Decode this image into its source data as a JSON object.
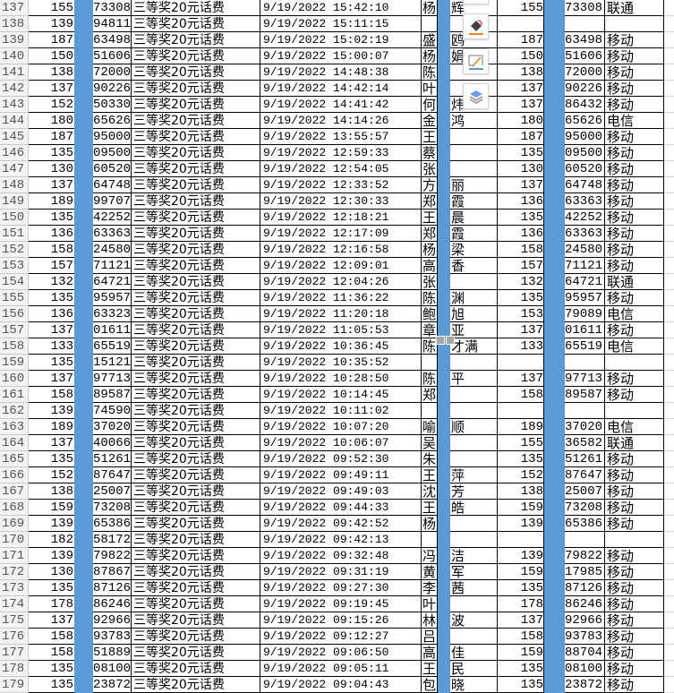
{
  "colors": {
    "highlight_column": "#5b9bd5",
    "row_header_bg": "#f3f3f3"
  },
  "toolbar": {
    "icons": [
      "paint-bucket-icon",
      "border-pen-icon",
      "layers-icon"
    ]
  },
  "rows": [
    [
      "137",
      "155",
      "73308",
      "三等奖20元话费",
      "9/19/2022 15:42:10",
      "杨",
      "辉",
      "155",
      "73308",
      "联通"
    ],
    [
      "138",
      "139",
      "94811",
      "三等奖20元话费",
      "9/19/2022 15:11:15",
      "",
      "",
      "",
      "",
      ""
    ],
    [
      "139",
      "187",
      "63498",
      "三等奖20元话费",
      "9/19/2022 15:02:19",
      "盛",
      "鸥",
      "187",
      "63498",
      "移动"
    ],
    [
      "140",
      "150",
      "51606",
      "三等奖20元话费",
      "9/19/2022 15:00:07",
      "杨",
      "娟",
      "150",
      "51606",
      "移动"
    ],
    [
      "141",
      "138",
      "72000",
      "三等奖20元话费",
      "9/19/2022 14:48:38",
      "陈",
      "",
      "138",
      "72000",
      "移动"
    ],
    [
      "142",
      "137",
      "90226",
      "三等奖20元话费",
      "9/19/2022 14:42:14",
      "叶",
      "",
      "137",
      "90226",
      "移动"
    ],
    [
      "143",
      "152",
      "50330",
      "三等奖20元话费",
      "9/19/2022 14:41:42",
      "何",
      "炜",
      "137",
      "86432",
      "移动"
    ],
    [
      "144",
      "180",
      "65626",
      "三等奖20元话费",
      "9/19/2022 14:14:26",
      "金",
      "鸿",
      "180",
      "65626",
      "电信"
    ],
    [
      "145",
      "187",
      "95000",
      "三等奖20元话费",
      "9/19/2022 13:55:57",
      "王",
      "",
      "187",
      "95000",
      "移动"
    ],
    [
      "146",
      "135",
      "09500",
      "三等奖20元话费",
      "9/19/2022 12:59:33",
      "蔡",
      "",
      "135",
      "09500",
      "移动"
    ],
    [
      "147",
      "130",
      "60520",
      "三等奖20元话费",
      "9/19/2022 12:54:05",
      "张",
      "",
      "130",
      "60520",
      "移动"
    ],
    [
      "148",
      "137",
      "64748",
      "三等奖20元话费",
      "9/19/2022 12:33:52",
      "方",
      "丽",
      "137",
      "64748",
      "移动"
    ],
    [
      "149",
      "189",
      "99707",
      "三等奖20元话费",
      "9/19/2022 12:30:33",
      "郑",
      "霞",
      "136",
      "63363",
      "移动"
    ],
    [
      "150",
      "135",
      "42252",
      "三等奖20元话费",
      "9/19/2022 12:18:21",
      "王",
      "晨",
      "135",
      "42252",
      "移动"
    ],
    [
      "151",
      "136",
      "63363",
      "三等奖20元话费",
      "9/19/2022 12:17:09",
      "郑",
      "霞",
      "136",
      "63363",
      "移动"
    ],
    [
      "152",
      "158",
      "24580",
      "三等奖20元话费",
      "9/19/2022 12:16:58",
      "杨",
      "梁",
      "158",
      "24580",
      "移动"
    ],
    [
      "153",
      "157",
      "71121",
      "三等奖20元话费",
      "9/19/2022 12:09:01",
      "高",
      "香",
      "157",
      "71121",
      "移动"
    ],
    [
      "154",
      "132",
      "64721",
      "三等奖20元话费",
      "9/19/2022 12:04:26",
      "张",
      "",
      "132",
      "64721",
      "联通"
    ],
    [
      "155",
      "135",
      "95957",
      "三等奖20元话费",
      "9/19/2022 11:36:22",
      "陈",
      "渊",
      "135",
      "95957",
      "移动"
    ],
    [
      "156",
      "136",
      "63323",
      "三等奖20元话费",
      "9/19/2022 11:20:18",
      "鲍",
      "旭",
      "153",
      "79089",
      "电信"
    ],
    [
      "157",
      "137",
      "01611",
      "三等奖20元话费",
      "9/19/2022 11:05:53",
      "章",
      "亚",
      "137",
      "01611",
      "移动"
    ],
    [
      "158",
      "133",
      "65519",
      "三等奖20元话费",
      "9/19/2022 10:36:45",
      "陈",
      "才满",
      "133",
      "65519",
      "电信"
    ],
    [
      "159",
      "135",
      "15121",
      "三等奖20元话费",
      "9/19/2022 10:35:52",
      "",
      "",
      "",
      "",
      ""
    ],
    [
      "160",
      "137",
      "97713",
      "三等奖20元话费",
      "9/19/2022 10:28:50",
      "陈",
      "平",
      "137",
      "97713",
      "移动"
    ],
    [
      "161",
      "158",
      "89587",
      "三等奖20元话费",
      "9/19/2022 10:14:45",
      "郑",
      "",
      "158",
      "89587",
      "移动"
    ],
    [
      "162",
      "139",
      "74590",
      "三等奖20元话费",
      "9/19/2022 10:11:02",
      "",
      "",
      "",
      "",
      ""
    ],
    [
      "163",
      "189",
      "37020",
      "三等奖20元话费",
      "9/19/2022 10:07:20",
      "喻",
      "顺",
      "189",
      "37020",
      "电信"
    ],
    [
      "164",
      "137",
      "40066",
      "三等奖20元话费",
      "9/19/2022 10:06:07",
      "吴",
      "",
      "155",
      "36582",
      "联通"
    ],
    [
      "165",
      "135",
      "51261",
      "三等奖20元话费",
      "9/19/2022 09:52:30",
      "朱",
      "",
      "135",
      "51261",
      "移动"
    ],
    [
      "166",
      "152",
      "87647",
      "三等奖20元话费",
      "9/19/2022 09:49:11",
      "王",
      "萍",
      "152",
      "87647",
      "移动"
    ],
    [
      "167",
      "138",
      "25007",
      "三等奖20元话费",
      "9/19/2022 09:49:03",
      "沈",
      "芳",
      "138",
      "25007",
      "移动"
    ],
    [
      "168",
      "159",
      "73208",
      "三等奖20元话费",
      "9/19/2022 09:44:33",
      "王",
      "皓",
      "159",
      "73208",
      "移动"
    ],
    [
      "169",
      "139",
      "65386",
      "三等奖20元话费",
      "9/19/2022 09:42:52",
      "杨",
      "",
      "139",
      "65386",
      "移动"
    ],
    [
      "170",
      "182",
      "58172",
      "三等奖20元话费",
      "9/19/2022 09:42:13",
      "",
      "",
      "",
      "",
      ""
    ],
    [
      "171",
      "139",
      "79822",
      "三等奖20元话费",
      "9/19/2022 09:32:48",
      "冯",
      "洁",
      "139",
      "79822",
      "移动"
    ],
    [
      "172",
      "130",
      "87867",
      "三等奖20元话费",
      "9/19/2022 09:31:19",
      "黄",
      "军",
      "159",
      "17985",
      "移动"
    ],
    [
      "173",
      "135",
      "87126",
      "三等奖20元话费",
      "9/19/2022 09:27:30",
      "李",
      "茜",
      "135",
      "87126",
      "移动"
    ],
    [
      "174",
      "178",
      "86246",
      "三等奖20元话费",
      "9/19/2022 09:19:45",
      "叶",
      "",
      "178",
      "86246",
      "移动"
    ],
    [
      "175",
      "137",
      "92966",
      "三等奖20元话费",
      "9/19/2022 09:15:26",
      "林",
      "波",
      "137",
      "92966",
      "移动"
    ],
    [
      "176",
      "158",
      "93783",
      "三等奖20元话费",
      "9/19/2022 09:12:27",
      "吕",
      "",
      "158",
      "93783",
      "移动"
    ],
    [
      "177",
      "158",
      "51889",
      "三等奖20元话费",
      "9/19/2022 09:06:50",
      "高",
      "佳",
      "159",
      "88704",
      "移动"
    ],
    [
      "178",
      "135",
      "08100",
      "三等奖20元话费",
      "9/19/2022 09:05:11",
      "王",
      "民",
      "135",
      "08100",
      "移动"
    ],
    [
      "179",
      "135",
      "23872",
      "三等奖20元话费",
      "9/19/2022 09:04:43",
      "包",
      "晓",
      "135",
      "23872",
      "移动"
    ]
  ]
}
